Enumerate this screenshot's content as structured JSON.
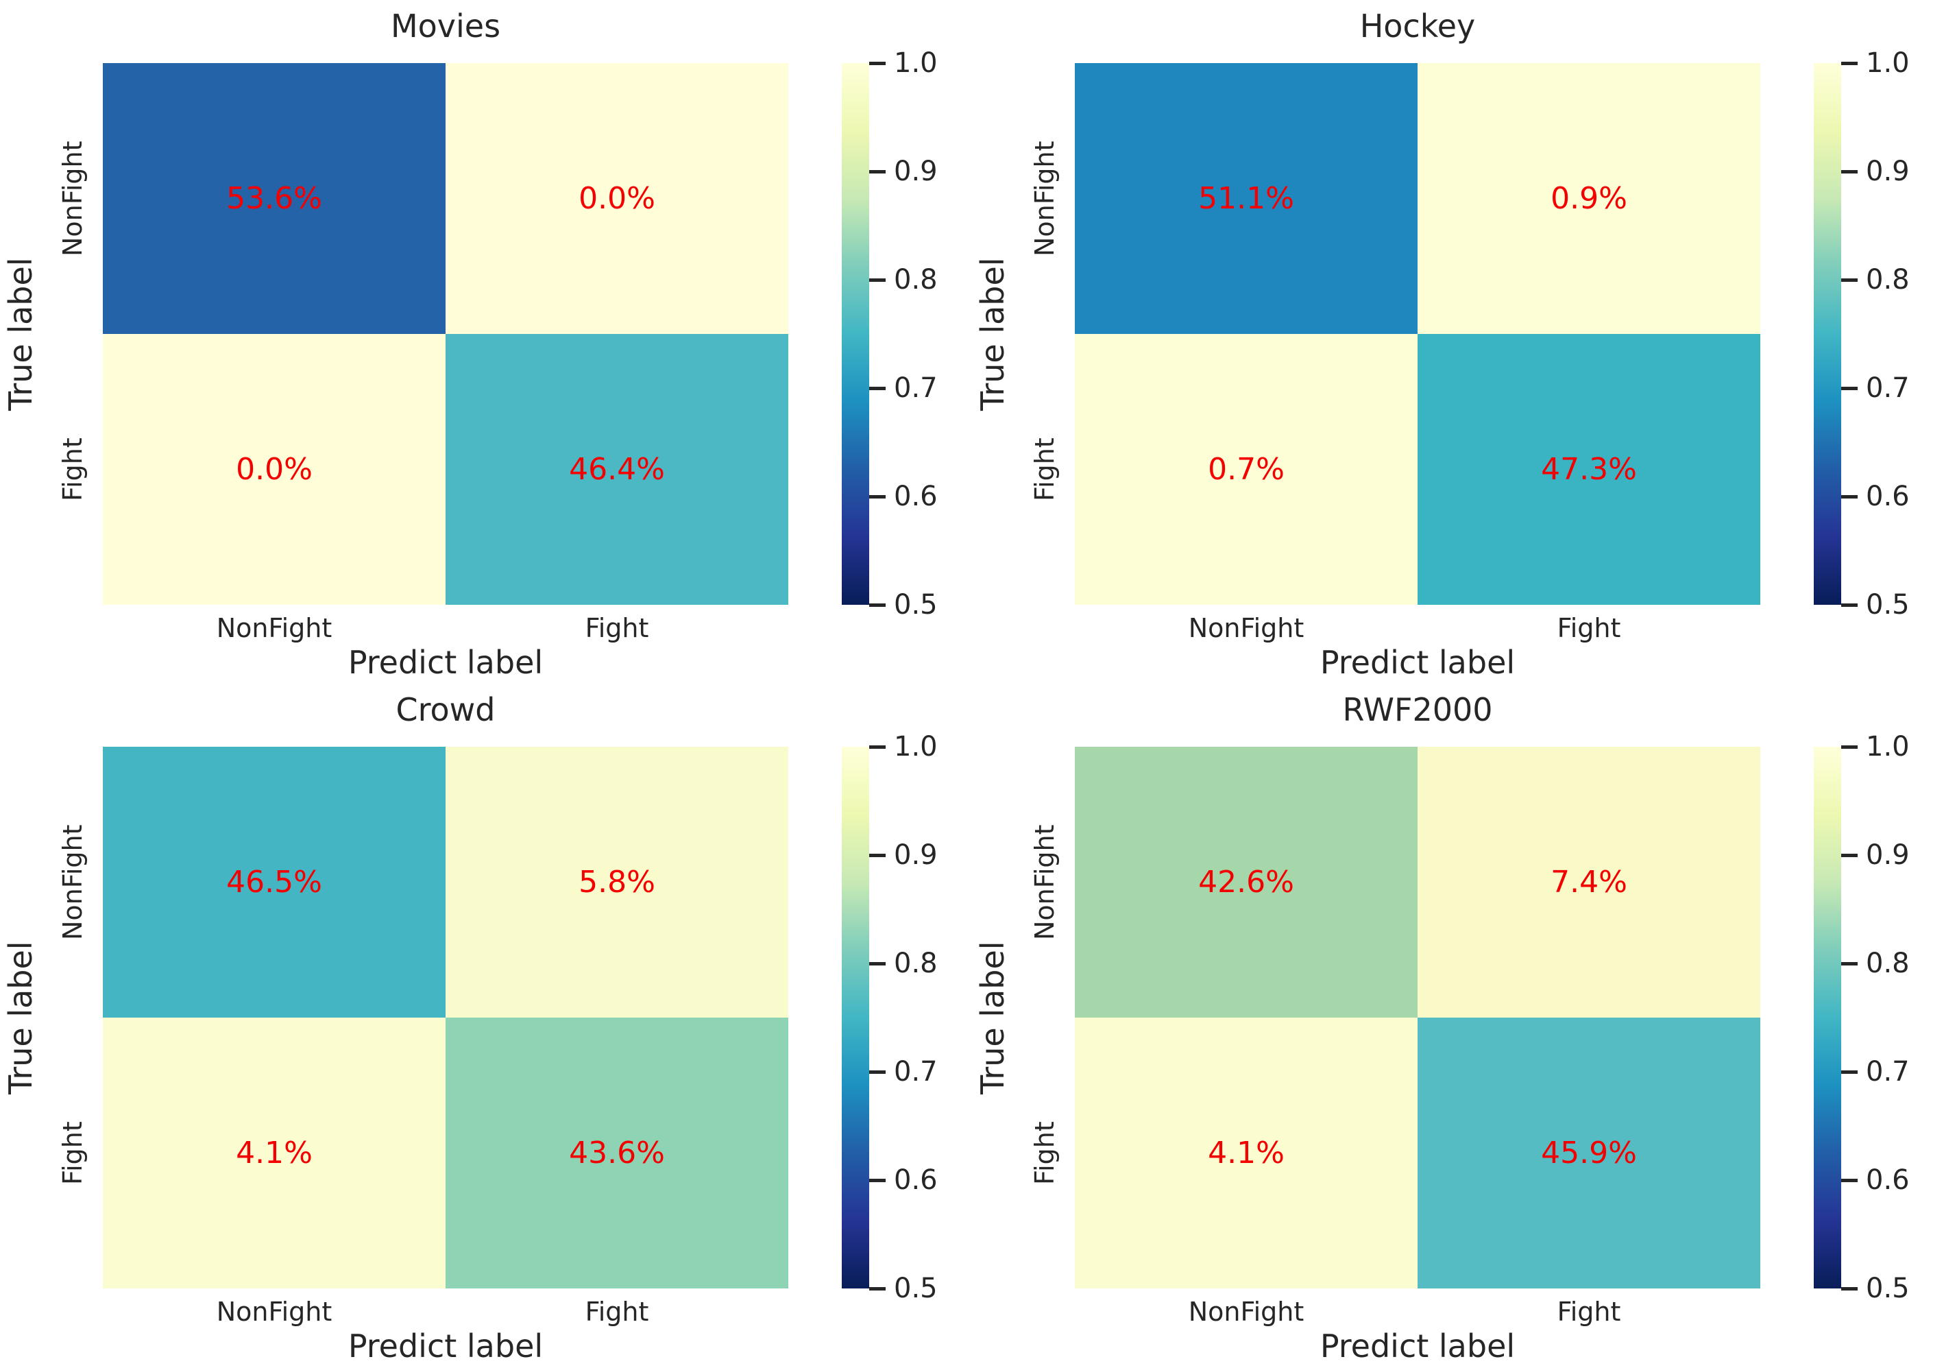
{
  "axes": {
    "ylabel": "True label",
    "xlabel": "Predict label",
    "yticks": [
      "NonFight",
      "Fight"
    ],
    "xticks": [
      "NonFight",
      "Fight"
    ]
  },
  "colorbar": {
    "ticks": [
      "1.0",
      "0.9",
      "0.8",
      "0.7",
      "0.6",
      "0.5"
    ],
    "range": [
      0.5,
      1.0
    ],
    "gradient_top_to_bottom": [
      "#ffffd9",
      "#edf8b1",
      "#c7e9b4",
      "#7fcdbb",
      "#41b6c4",
      "#1d91c0",
      "#225ea8",
      "#253494",
      "#081d58"
    ]
  },
  "value_text_color": "#f40000",
  "label_text_color": "#262626",
  "panels": [
    {
      "title": "Movies",
      "cells": [
        [
          {
            "value": "53.6%",
            "color": "#2463a8"
          },
          {
            "value": "0.0%",
            "color": "#fffed9"
          }
        ],
        [
          {
            "value": "0.0%",
            "color": "#fffed9"
          },
          {
            "value": "46.4%",
            "color": "#4cb8c3"
          }
        ]
      ]
    },
    {
      "title": "Hockey",
      "cells": [
        [
          {
            "value": "51.1%",
            "color": "#1f87bd"
          },
          {
            "value": "0.9%",
            "color": "#fdfdd6"
          }
        ],
        [
          {
            "value": "0.7%",
            "color": "#fdfdd6"
          },
          {
            "value": "47.3%",
            "color": "#3ab4c3"
          }
        ]
      ]
    },
    {
      "title": "Crowd",
      "cells": [
        [
          {
            "value": "46.5%",
            "color": "#44b5c3"
          },
          {
            "value": "5.8%",
            "color": "#fafbcc"
          }
        ],
        [
          {
            "value": "4.1%",
            "color": "#fbfcd0"
          },
          {
            "value": "43.6%",
            "color": "#8ed3b3"
          }
        ]
      ]
    },
    {
      "title": "RWF2000",
      "cells": [
        [
          {
            "value": "42.6%",
            "color": "#a5d7ab"
          },
          {
            "value": "7.4%",
            "color": "#f9fac7"
          }
        ],
        [
          {
            "value": "4.1%",
            "color": "#fbfcd0"
          },
          {
            "value": "45.9%",
            "color": "#55bcc4"
          }
        ]
      ]
    }
  ],
  "chart_data": [
    {
      "type": "heatmap",
      "title": "Movies",
      "x_categories": [
        "NonFight",
        "Fight"
      ],
      "y_categories": [
        "NonFight",
        "Fight"
      ],
      "xlabel": "Predict label",
      "ylabel": "True label",
      "values_percent": [
        [
          53.6,
          0.0
        ],
        [
          0.0,
          46.4
        ]
      ],
      "annotation_color": "red",
      "colormap": "YlGnBu reversed (light yellow = high, dark navy = low)",
      "colorbar_ticks": [
        1.0,
        0.9,
        0.8,
        0.7,
        0.6,
        0.5
      ],
      "colorbar_range": [
        0.5,
        1.0
      ],
      "legend_position": "right colorbar",
      "grid": false
    },
    {
      "type": "heatmap",
      "title": "Hockey",
      "x_categories": [
        "NonFight",
        "Fight"
      ],
      "y_categories": [
        "NonFight",
        "Fight"
      ],
      "xlabel": "Predict label",
      "ylabel": "True label",
      "values_percent": [
        [
          51.1,
          0.9
        ],
        [
          0.7,
          47.3
        ]
      ],
      "annotation_color": "red",
      "colormap": "YlGnBu reversed (light yellow = high, dark navy = low)",
      "colorbar_ticks": [
        1.0,
        0.9,
        0.8,
        0.7,
        0.6,
        0.5
      ],
      "colorbar_range": [
        0.5,
        1.0
      ],
      "legend_position": "right colorbar",
      "grid": false
    },
    {
      "type": "heatmap",
      "title": "Crowd",
      "x_categories": [
        "NonFight",
        "Fight"
      ],
      "y_categories": [
        "NonFight",
        "Fight"
      ],
      "xlabel": "Predict label",
      "ylabel": "True label",
      "values_percent": [
        [
          46.5,
          5.8
        ],
        [
          4.1,
          43.6
        ]
      ],
      "annotation_color": "red",
      "colormap": "YlGnBu reversed (light yellow = high, dark navy = low)",
      "colorbar_ticks": [
        1.0,
        0.9,
        0.8,
        0.7,
        0.6,
        0.5
      ],
      "colorbar_range": [
        0.5,
        1.0
      ],
      "legend_position": "right colorbar",
      "grid": false
    },
    {
      "type": "heatmap",
      "title": "RWF2000",
      "x_categories": [
        "NonFight",
        "Fight"
      ],
      "y_categories": [
        "NonFight",
        "Fight"
      ],
      "xlabel": "Predict label",
      "ylabel": "True label",
      "values_percent": [
        [
          42.6,
          7.4
        ],
        [
          4.1,
          45.9
        ]
      ],
      "annotation_color": "red",
      "colormap": "YlGnBu reversed (light yellow = high, dark navy = low)",
      "colorbar_ticks": [
        1.0,
        0.9,
        0.8,
        0.7,
        0.6,
        0.5
      ],
      "colorbar_range": [
        0.5,
        1.0
      ],
      "legend_position": "right colorbar",
      "grid": false
    }
  ]
}
